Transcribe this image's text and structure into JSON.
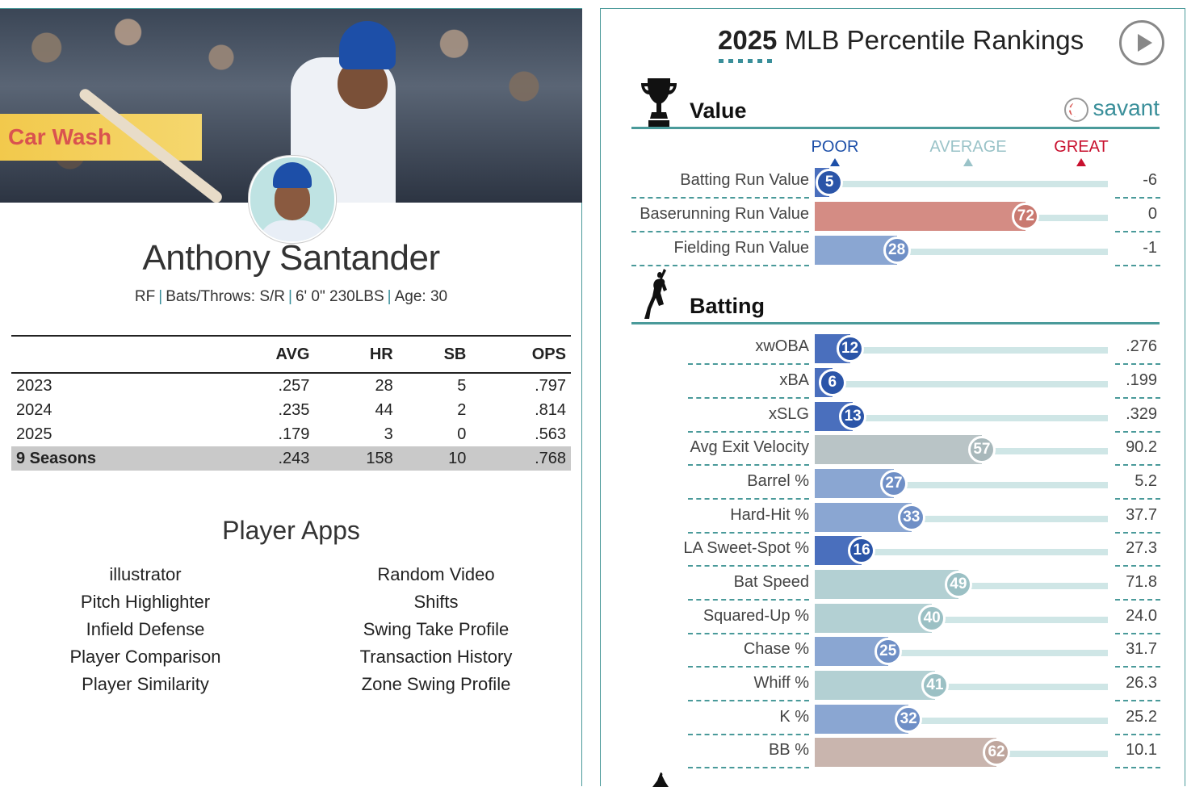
{
  "player": {
    "name": "Anthony Santander",
    "position": "RF",
    "bats_throws": "Bats/Throws: S/R",
    "size": "6' 0\" 230LBS",
    "age": "Age: 30",
    "banner_text": "Car Wash"
  },
  "stats": {
    "headers": [
      "",
      "AVG",
      "HR",
      "SB",
      "OPS"
    ],
    "rows": [
      [
        "2023",
        ".257",
        "28",
        "5",
        ".797"
      ],
      [
        "2024",
        ".235",
        "44",
        "2",
        ".814"
      ],
      [
        "2025",
        ".179",
        "3",
        "0",
        ".563"
      ]
    ],
    "total": [
      "9 Seasons",
      ".243",
      "158",
      "10",
      ".768"
    ]
  },
  "apps": {
    "title": "Player Apps",
    "col1": [
      "illustrator",
      "Pitch Highlighter",
      "Infield Defense",
      "Player Comparison",
      "Player Similarity"
    ],
    "col2": [
      "Random Video",
      "Shifts",
      "Swing Take Profile",
      "Transaction History",
      "Zone Swing Profile"
    ]
  },
  "rankings": {
    "year": "2025",
    "title_rest": "MLB Percentile Rankings",
    "brand": "savant",
    "scale": {
      "poor": "POOR",
      "average": "AVERAGE",
      "great": "GREAT"
    },
    "sections": [
      {
        "label": "Value",
        "icon": "trophy-icon",
        "metrics": [
          {
            "name": "Batting Run Value",
            "pct": 5,
            "value": "-6"
          },
          {
            "name": "Baserunning Run Value",
            "pct": 72,
            "value": "0"
          },
          {
            "name": "Fielding Run Value",
            "pct": 28,
            "value": "-1"
          }
        ]
      },
      {
        "label": "Batting",
        "icon": "batter-icon",
        "metrics": [
          {
            "name": "xwOBA",
            "pct": 12,
            "value": ".276"
          },
          {
            "name": "xBA",
            "pct": 6,
            "value": ".199"
          },
          {
            "name": "xSLG",
            "pct": 13,
            "value": ".329"
          },
          {
            "name": "Avg Exit Velocity",
            "pct": 57,
            "value": "90.2"
          },
          {
            "name": "Barrel %",
            "pct": 27,
            "value": "5.2"
          },
          {
            "name": "Hard-Hit %",
            "pct": 33,
            "value": "37.7"
          },
          {
            "name": "LA Sweet-Spot %",
            "pct": 16,
            "value": "27.3"
          },
          {
            "name": "Bat Speed",
            "pct": 49,
            "value": "71.8"
          },
          {
            "name": "Squared-Up %",
            "pct": 40,
            "value": "24.0"
          },
          {
            "name": "Chase %",
            "pct": 25,
            "value": "31.7"
          },
          {
            "name": "Whiff %",
            "pct": 41,
            "value": "26.3"
          },
          {
            "name": "K %",
            "pct": 32,
            "value": "25.2"
          },
          {
            "name": "BB %",
            "pct": 62,
            "value": "10.1"
          }
        ]
      }
    ]
  },
  "colors": {
    "teal": "#3a8f9a",
    "poor": "#1d4fa8",
    "average": "#9a9a9a",
    "great": "#c8102e"
  }
}
